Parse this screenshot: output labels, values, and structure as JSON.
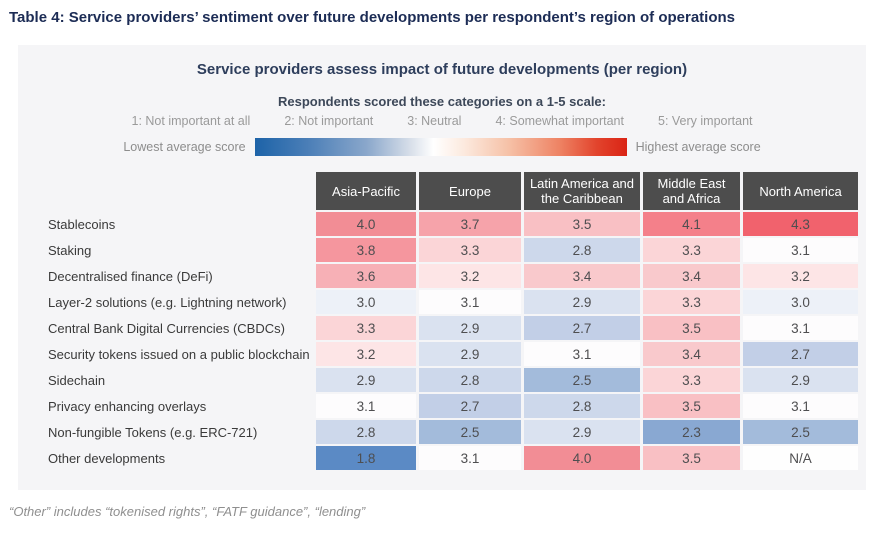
{
  "page": {
    "title": "Table 4: Service providers’ sentiment over future developments per respondent’s region of operations",
    "footnote": "“Other” includes “tokenised rights”, “FATF guidance”, “lending”"
  },
  "card": {
    "title": "Service providers assess impact of future developments (per region)",
    "scale_intro": "Respondents scored these categories on a 1-5 scale:",
    "scale_labels": [
      "1: Not important at all",
      "2: Not important",
      "3: Neutral",
      "4: Somewhat important",
      "5: Very important"
    ],
    "legend": {
      "low_label": "Lowest average score",
      "high_label": "Highest average score",
      "low_color": "#1d63a8",
      "mid_color": "#ffffff",
      "high_color": "#da2415"
    }
  },
  "chart_data": {
    "type": "heatmap",
    "title": "Service providers assess impact of future developments (per region)",
    "value_scale": [
      1,
      5
    ],
    "columns": [
      "Asia-Pacific",
      "Europe",
      "Latin America and the Caribbean",
      "Middle East and Africa",
      "North America"
    ],
    "rows": [
      {
        "label": "Stablecoins",
        "values": [
          4.0,
          3.7,
          3.5,
          4.1,
          4.3
        ]
      },
      {
        "label": "Staking",
        "values": [
          3.8,
          3.3,
          2.8,
          3.3,
          3.1
        ]
      },
      {
        "label": "Decentralised finance (DeFi)",
        "values": [
          3.6,
          3.2,
          3.4,
          3.4,
          3.2
        ]
      },
      {
        "label": "Layer-2 solutions (e.g. Lightning network)",
        "values": [
          3.0,
          3.1,
          2.9,
          3.3,
          3.0
        ]
      },
      {
        "label": "Central Bank Digital Currencies (CBDCs)",
        "values": [
          3.3,
          2.9,
          2.7,
          3.5,
          3.1
        ]
      },
      {
        "label": "Security tokens issued on a public blockchain",
        "values": [
          3.2,
          2.9,
          3.1,
          3.4,
          2.7
        ]
      },
      {
        "label": "Sidechain",
        "values": [
          2.9,
          2.8,
          2.5,
          3.3,
          2.9
        ]
      },
      {
        "label": "Privacy enhancing overlays",
        "values": [
          3.1,
          2.7,
          2.8,
          3.5,
          3.1
        ]
      },
      {
        "label": "Non-fungible Tokens (e.g. ERC-721)",
        "values": [
          2.8,
          2.5,
          2.9,
          2.3,
          2.5
        ]
      },
      {
        "label": "Other developments",
        "values": [
          1.8,
          3.1,
          4.0,
          3.5,
          "N/A"
        ]
      }
    ],
    "colormap": {
      "1.8": "#5b8ac5",
      "2.3": "#89a8d2",
      "2.5": "#a3bbdb",
      "2.7": "#c2cfe7",
      "2.8": "#cdd8eb",
      "2.9": "#dae2f0",
      "3.0": "#edf1f8",
      "3.1": "#fdfcfd",
      "3.2": "#fde5e6",
      "3.3": "#fbd5d7",
      "3.4": "#f9c9cc",
      "3.5": "#f9c0c4",
      "3.6": "#f7b0b6",
      "3.7": "#f6a3aa",
      "3.8": "#f5969e",
      "4.0": "#f28d95",
      "4.1": "#f4808a",
      "4.3": "#f1626d",
      "N/A": "#fefefe"
    },
    "legend_position": "top",
    "grid": false
  }
}
